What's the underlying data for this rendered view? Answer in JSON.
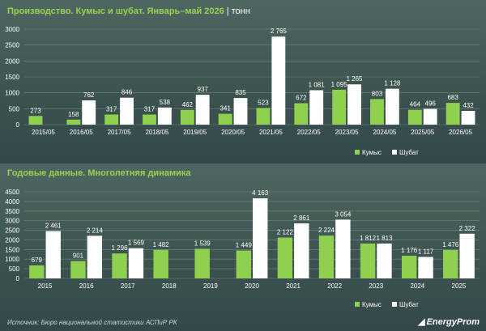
{
  "top": {
    "title": "Производство. Кумыс и шубат. Январь–май 2026",
    "unit": "тонн"
  },
  "bottom": {
    "title": "Годовые данные. Многолетняя динамика"
  },
  "source": "Источник: Бюро национальной статистики АСПиР РК",
  "logo": "EnergyProm",
  "colors": {
    "kumys": "#8fd14f",
    "shubat": "#ffffff"
  },
  "chart_data": [
    {
      "type": "bar",
      "categories": [
        "2015/05",
        "2016/05",
        "2017/05",
        "2018/05",
        "2019/05",
        "2020/05",
        "2021/05",
        "2022/05",
        "2023/05",
        "2024/05",
        "2025/05",
        "2026/05"
      ],
      "series": [
        {
          "name": "Кумыс",
          "values": [
            273,
            158,
            317,
            317,
            462,
            341,
            523,
            672,
            1095,
            803,
            464,
            683
          ],
          "labels": [
            "273",
            "158",
            "317",
            "317",
            "462",
            "341",
            "523",
            "672",
            "1 095",
            "803",
            "464",
            "683"
          ]
        },
        {
          "name": "Шубат",
          "values": [
            null,
            762,
            846,
            538,
            937,
            835,
            2765,
            1081,
            1265,
            1128,
            496,
            432
          ],
          "labels": [
            "",
            "762",
            "846",
            "538",
            "937",
            "835",
            "2 765",
            "1 081",
            "1 265",
            "1 128",
            "496",
            "432"
          ]
        }
      ],
      "yticks": [
        "0",
        "500",
        "1000",
        "1500",
        "2000",
        "2500",
        "3000"
      ],
      "ylim": [
        0,
        3000
      ],
      "legend": "bottom-right"
    },
    {
      "type": "bar",
      "categories": [
        "2015",
        "2016",
        "2017",
        "2018",
        "2019",
        "2020",
        "2021",
        "2022",
        "2023",
        "2024",
        "2025"
      ],
      "series": [
        {
          "name": "Кумыс",
          "values": [
            679,
            901,
            1296,
            1482,
            1539,
            1449,
            2122,
            2224,
            1812,
            1176,
            1476
          ],
          "labels": [
            "679",
            "901",
            "1 296",
            "1 482",
            "1 539",
            "1 449",
            "2 122",
            "2 224",
            "1 812",
            "1 176",
            "1 476"
          ]
        },
        {
          "name": "Шубат",
          "values": [
            2461,
            2214,
            1569,
            null,
            null,
            4163,
            2861,
            3054,
            1813,
            1117,
            2322
          ],
          "labels": [
            "2 461",
            "2 214",
            "1 569",
            "",
            "",
            "4 163",
            "2 861",
            "3 054",
            "1 813",
            "1 117",
            "2 322"
          ]
        }
      ],
      "yticks": [
        "0",
        "500",
        "1000",
        "1500",
        "2000",
        "2500",
        "3000",
        "3500",
        "4000",
        "4500"
      ],
      "ylim": [
        0,
        4500
      ],
      "legend": "bottom-right"
    }
  ]
}
